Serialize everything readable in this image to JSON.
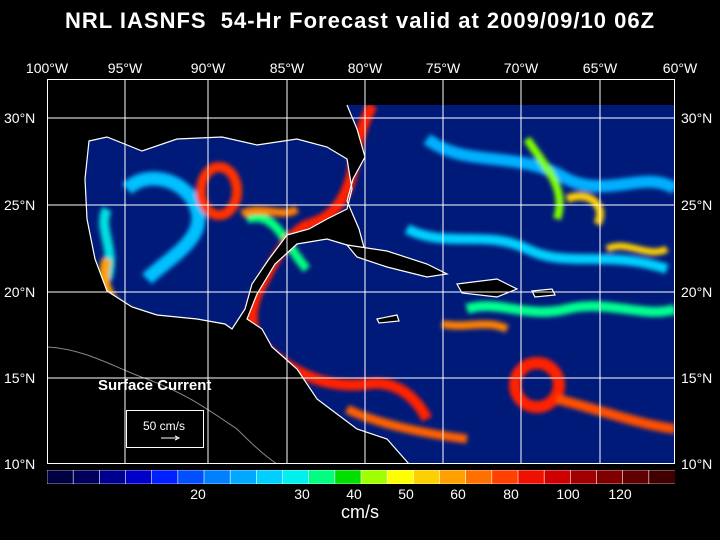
{
  "title": "NRL IASNFS  54-Hr Forecast valid at 2009/09/10 06Z",
  "lon_labels": [
    "100°W",
    "95°W",
    "90°W",
    "85°W",
    "80°W",
    "75°W",
    "70°W",
    "65°W",
    "60°W"
  ],
  "lat_labels": [
    "30°N",
    "25°N",
    "20°N",
    "15°N",
    "10°N"
  ],
  "legend": {
    "label": "Surface Current",
    "speed": "50 cm/s"
  },
  "colorbar": {
    "units": "cm/s",
    "labels": [
      "20",
      "30",
      "40",
      "50",
      "60",
      "80",
      "100",
      "120"
    ],
    "colors": [
      "#000040",
      "#00005a",
      "#000090",
      "#0000c8",
      "#0020ff",
      "#0050ff",
      "#0080ff",
      "#00a8ff",
      "#00d0ff",
      "#00f0f0",
      "#00ff80",
      "#00e000",
      "#a0ff00",
      "#ffff00",
      "#ffd000",
      "#ffa000",
      "#ff7000",
      "#ff4000",
      "#f01000",
      "#d00000",
      "#a00000",
      "#800000",
      "#600000",
      "#400000"
    ]
  },
  "colors": {
    "land": "#000000",
    "coast": "#ffffff",
    "ocean_base": "#001a7a"
  }
}
